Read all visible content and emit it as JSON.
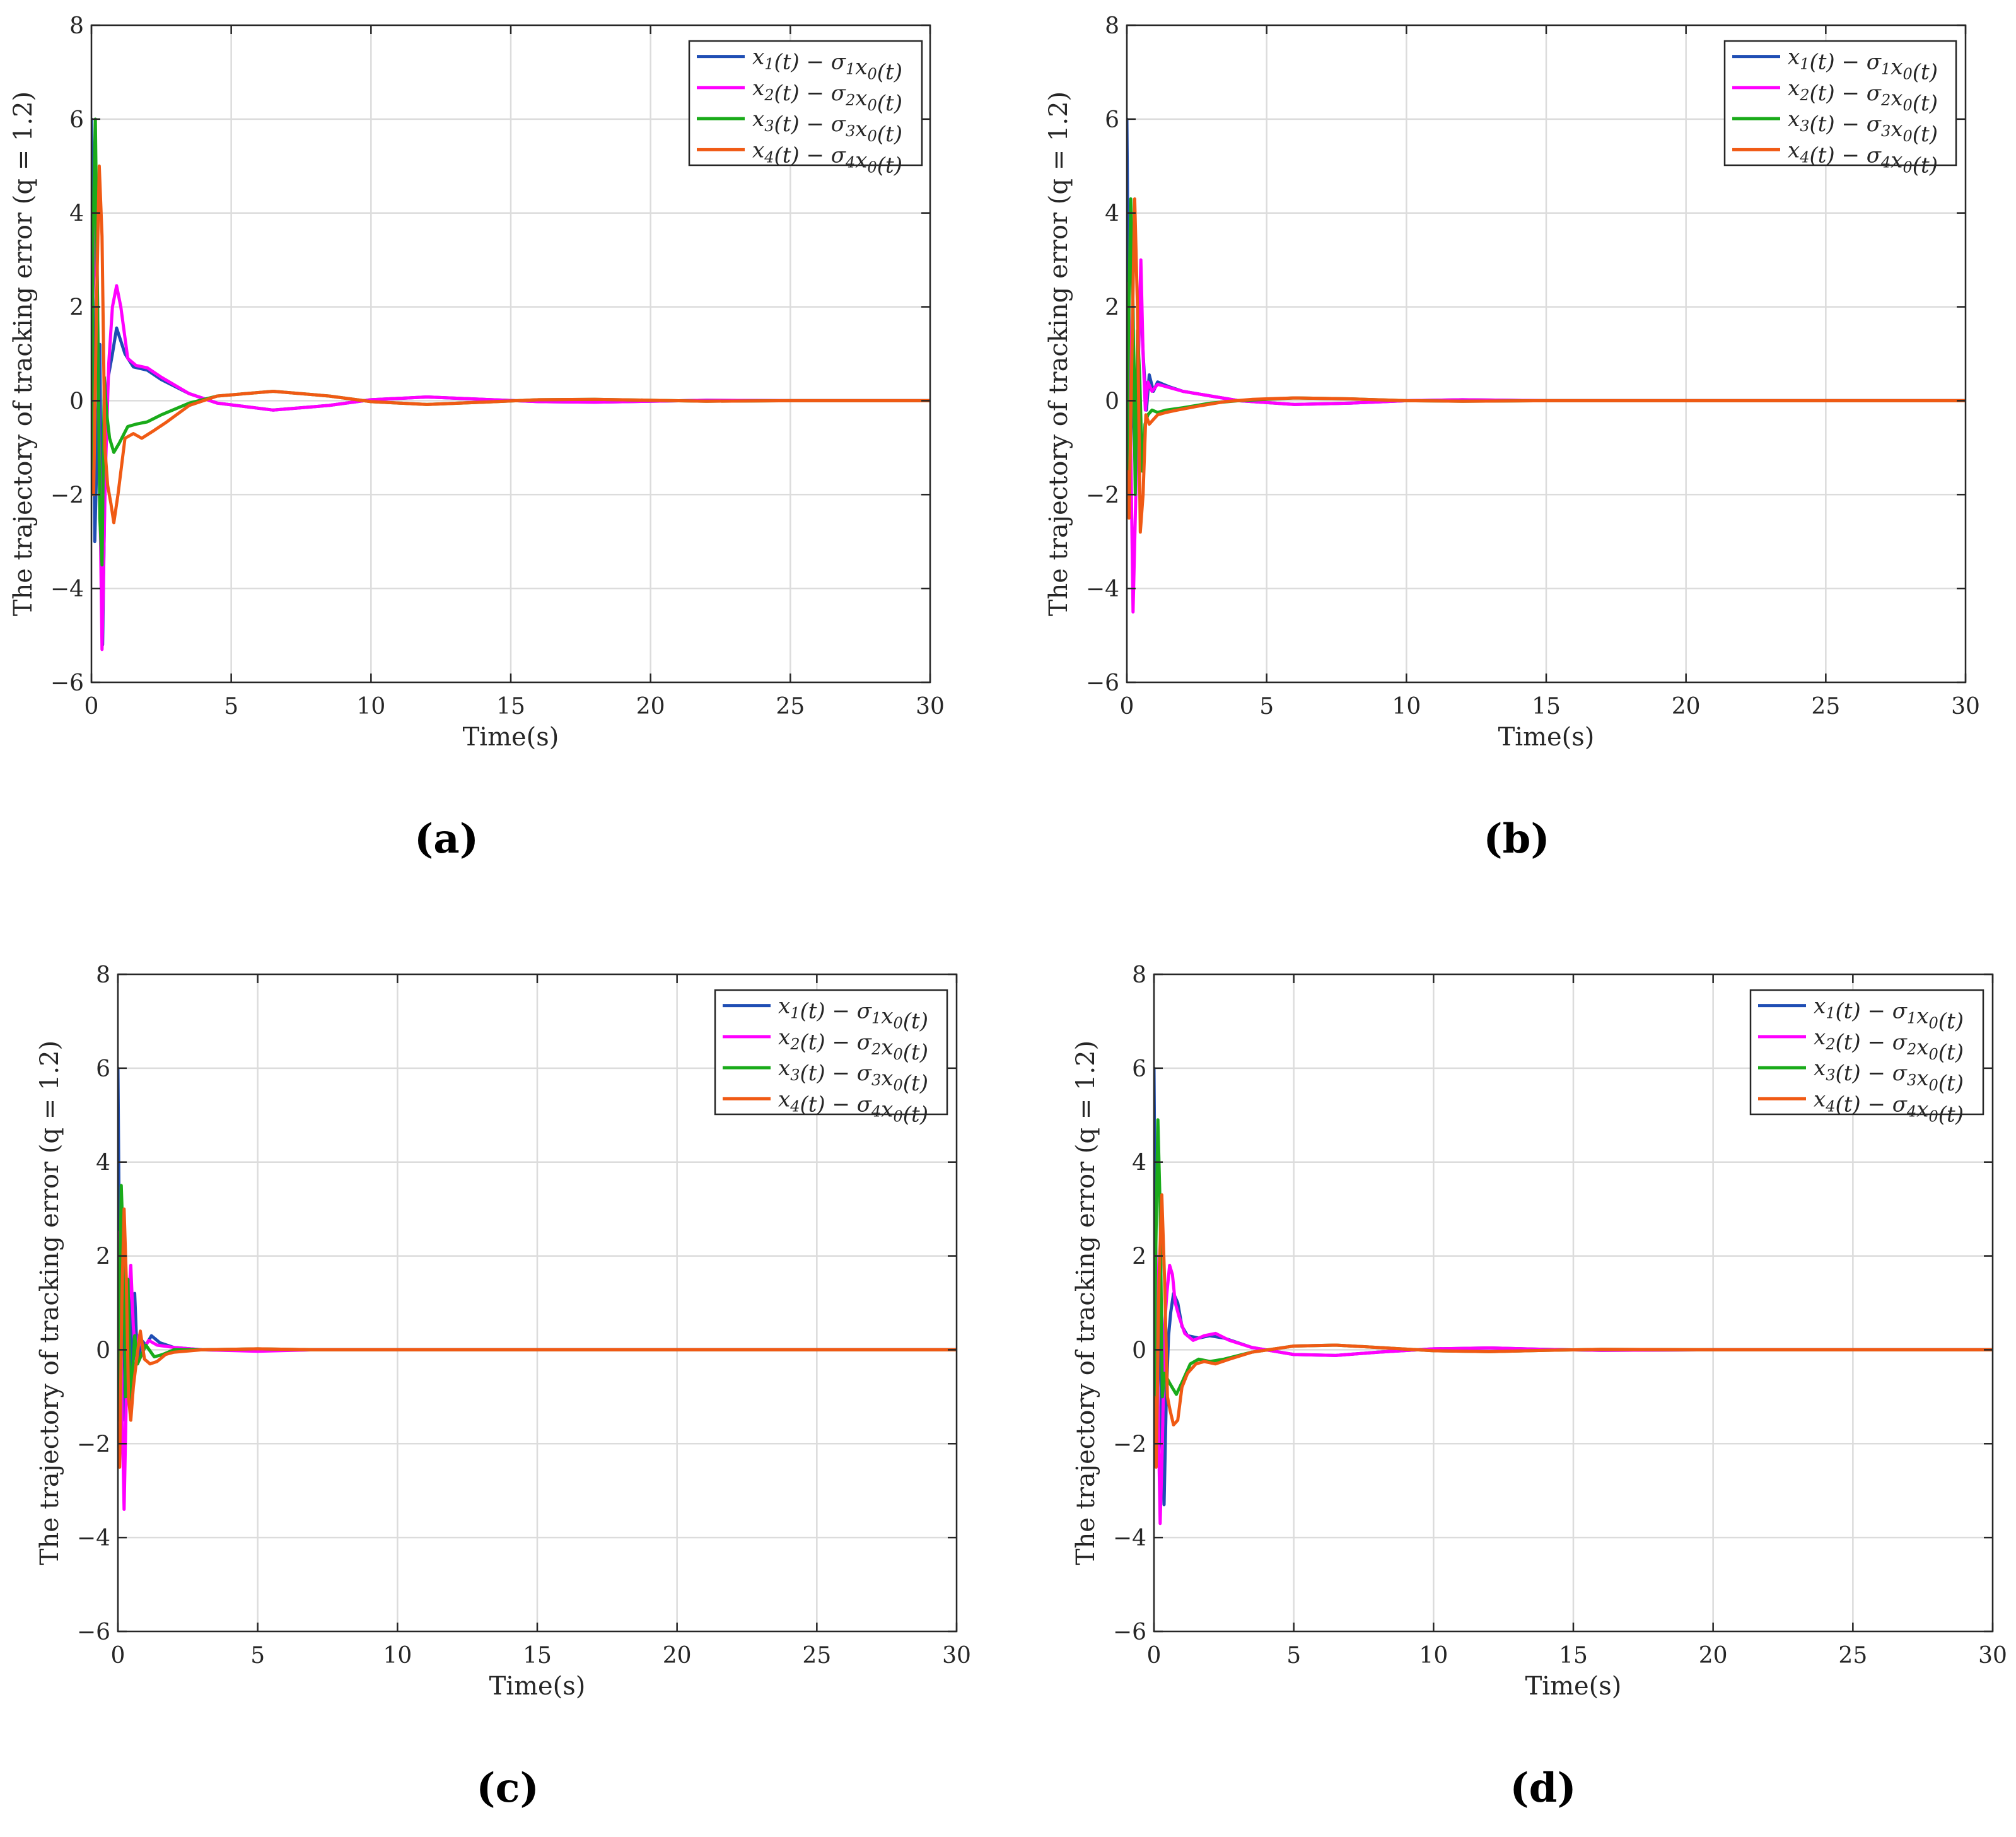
{
  "figure": {
    "panels_note": "Four subplots showing tracking error trajectories"
  },
  "chart_data": [
    {
      "type": "line",
      "caption": "(a)",
      "xlabel": "Time(s)",
      "ylabel": "The trajectory of tracking error (q = 1.2)",
      "xlim": [
        0,
        30
      ],
      "ylim": [
        -6,
        8
      ],
      "xticks": [
        "0",
        "5",
        "10",
        "15",
        "20",
        "25",
        "30"
      ],
      "yticks": [
        "−6",
        "−4",
        "−2",
        "0",
        "2",
        "4",
        "6",
        "8"
      ],
      "grid": true,
      "legend_position": "top-right",
      "series": [
        {
          "name": "x1(t) − σ1x0(t)",
          "color": "#1f4eb4",
          "x": [
            0,
            0.05,
            0.12,
            0.2,
            0.3,
            0.4,
            0.5,
            0.6,
            0.75,
            0.9,
            1.2,
            1.5,
            2.0,
            2.5,
            3.5,
            4.5,
            6.5,
            8.5,
            10,
            12,
            14,
            16,
            18,
            20,
            22,
            25,
            30
          ],
          "y": [
            6.0,
            3.0,
            -3.0,
            -1.0,
            1.2,
            -5.2,
            -1.0,
            0.5,
            1.0,
            1.55,
            1.0,
            0.72,
            0.65,
            0.45,
            0.15,
            -0.05,
            -0.2,
            -0.1,
            0.02,
            0.08,
            0.03,
            -0.02,
            -0.03,
            -0.01,
            0.01,
            0.0,
            0.0
          ]
        },
        {
          "name": "x2(t) − σ2x0(t)",
          "color": "#ff00ff",
          "x": [
            0,
            0.08,
            0.18,
            0.28,
            0.38,
            0.5,
            0.62,
            0.75,
            0.9,
            1.05,
            1.3,
            1.6,
            2.0,
            2.5,
            3.5,
            4.5,
            6.5,
            8.5,
            10,
            12,
            14,
            16,
            18,
            20,
            22,
            25,
            30
          ],
          "y": [
            1.5,
            2.5,
            4.0,
            -1.0,
            -5.3,
            -1.5,
            0.8,
            2.0,
            2.45,
            2.0,
            0.9,
            0.75,
            0.7,
            0.5,
            0.15,
            -0.05,
            -0.2,
            -0.1,
            0.02,
            0.08,
            0.03,
            -0.02,
            -0.03,
            -0.01,
            0.01,
            0.0,
            0.0
          ]
        },
        {
          "name": "x3(t) − σ3x0(t)",
          "color": "#1aab1a",
          "x": [
            0,
            0.06,
            0.14,
            0.22,
            0.3,
            0.38,
            0.46,
            0.55,
            0.65,
            0.8,
            1.0,
            1.3,
            1.6,
            2.0,
            2.5,
            3.5,
            4.5,
            6.5,
            8.5,
            10,
            12,
            14,
            16,
            18,
            20,
            22,
            25,
            30
          ],
          "y": [
            -1.5,
            3.5,
            6.0,
            2.0,
            -2.5,
            -3.5,
            0.5,
            -0.3,
            -0.8,
            -1.1,
            -0.9,
            -0.55,
            -0.5,
            -0.45,
            -0.3,
            -0.05,
            0.1,
            0.2,
            0.1,
            -0.02,
            -0.08,
            -0.03,
            0.02,
            0.03,
            0.01,
            -0.01,
            0.0,
            0.0
          ]
        },
        {
          "name": "x4(t) − σ4x0(t)",
          "color": "#f05a14",
          "x": [
            0,
            0.08,
            0.18,
            0.28,
            0.38,
            0.48,
            0.58,
            0.7,
            0.8,
            0.95,
            1.2,
            1.5,
            1.8,
            2.2,
            2.7,
            3.5,
            4.5,
            6.5,
            8.5,
            10,
            12,
            14,
            16,
            18,
            20,
            22,
            25,
            30
          ],
          "y": [
            -1.5,
            -2.0,
            2.0,
            5.0,
            3.5,
            -1.0,
            -1.8,
            -2.2,
            -2.6,
            -2.0,
            -0.8,
            -0.7,
            -0.8,
            -0.65,
            -0.45,
            -0.1,
            0.1,
            0.2,
            0.1,
            -0.02,
            -0.08,
            -0.03,
            0.02,
            0.03,
            0.01,
            -0.01,
            0.0,
            0.0
          ]
        }
      ]
    },
    {
      "type": "line",
      "caption": "(b)",
      "xlabel": "Time(s)",
      "ylabel": "The trajectory of tracking error (q = 1.2)",
      "xlim": [
        0,
        30
      ],
      "ylim": [
        -6,
        8
      ],
      "xticks": [
        "0",
        "5",
        "10",
        "15",
        "20",
        "25",
        "30"
      ],
      "yticks": [
        "−6",
        "−4",
        "−2",
        "0",
        "2",
        "4",
        "6",
        "8"
      ],
      "grid": true,
      "legend_position": "top-right",
      "series": [
        {
          "name": "x1(t) − σ1x0(t)",
          "color": "#1f4eb4",
          "x": [
            0,
            0.05,
            0.12,
            0.2,
            0.3,
            0.4,
            0.5,
            0.6,
            0.7,
            0.8,
            0.95,
            1.1,
            1.3,
            1.5,
            2.0,
            3.0,
            4.0,
            6.0,
            8.0,
            10,
            12,
            15,
            20,
            30
          ],
          "y": [
            6.0,
            2.5,
            -1.5,
            1.0,
            -1.5,
            1.5,
            2.0,
            0.8,
            -0.2,
            0.55,
            0.2,
            0.4,
            0.35,
            0.3,
            0.2,
            0.1,
            0.0,
            -0.08,
            -0.05,
            0.0,
            0.02,
            0.0,
            0.0,
            0.0
          ]
        },
        {
          "name": "x2(t) − σ2x0(t)",
          "color": "#ff00ff",
          "x": [
            0,
            0.06,
            0.14,
            0.22,
            0.32,
            0.42,
            0.5,
            0.58,
            0.66,
            0.75,
            0.9,
            1.1,
            1.4,
            2.0,
            3.0,
            4.0,
            6.0,
            8.0,
            10,
            12,
            15,
            20,
            30
          ],
          "y": [
            1.5,
            2.5,
            -1.0,
            -4.5,
            -2.0,
            1.0,
            3.0,
            1.0,
            -0.2,
            0.4,
            0.2,
            0.35,
            0.3,
            0.2,
            0.1,
            0.0,
            -0.08,
            -0.05,
            0.0,
            0.02,
            0.0,
            0.0,
            0.0
          ]
        },
        {
          "name": "x3(t) − σ3x0(t)",
          "color": "#1aab1a",
          "x": [
            0,
            0.06,
            0.14,
            0.22,
            0.3,
            0.38,
            0.46,
            0.55,
            0.65,
            0.75,
            0.9,
            1.1,
            1.4,
            2.0,
            3.0,
            4.0,
            6.0,
            8.0,
            10,
            12,
            15,
            20,
            30
          ],
          "y": [
            -1.5,
            1.5,
            4.3,
            2.0,
            -2.0,
            1.5,
            0.5,
            -1.5,
            -0.5,
            -0.3,
            -0.2,
            -0.25,
            -0.2,
            -0.15,
            -0.05,
            0.0,
            0.06,
            0.04,
            0.0,
            -0.01,
            0.0,
            0.0,
            0.0
          ]
        },
        {
          "name": "x4(t) − σ4x0(t)",
          "color": "#f05a14",
          "x": [
            0,
            0.08,
            0.18,
            0.28,
            0.38,
            0.48,
            0.58,
            0.68,
            0.8,
            0.95,
            1.1,
            1.4,
            1.8,
            2.5,
            3.5,
            4.5,
            6.0,
            8.0,
            10,
            12,
            15,
            20,
            30
          ],
          "y": [
            -1.5,
            -2.5,
            1.0,
            4.3,
            2.0,
            -2.8,
            -2.0,
            -0.3,
            -0.5,
            -0.4,
            -0.3,
            -0.25,
            -0.2,
            -0.12,
            -0.02,
            0.03,
            0.06,
            0.04,
            0.0,
            -0.01,
            0.0,
            0.0,
            0.0
          ]
        }
      ]
    },
    {
      "type": "line",
      "caption": "(c)",
      "xlabel": "Time(s)",
      "ylabel": "The trajectory of tracking error (q = 1.2)",
      "xlim": [
        0,
        30
      ],
      "ylim": [
        -6,
        8
      ],
      "xticks": [
        "0",
        "5",
        "10",
        "15",
        "20",
        "25",
        "30"
      ],
      "yticks": [
        "−6",
        "−4",
        "−2",
        "0",
        "2",
        "4",
        "6",
        "8"
      ],
      "grid": true,
      "legend_position": "top-right",
      "series": [
        {
          "name": "x1(t) − σ1x0(t)",
          "color": "#1f4eb4",
          "x": [
            0,
            0.04,
            0.1,
            0.18,
            0.26,
            0.34,
            0.42,
            0.5,
            0.6,
            0.7,
            0.85,
            1.0,
            1.2,
            1.5,
            2.0,
            3.0,
            5.0,
            7.0,
            10,
            15,
            30
          ],
          "y": [
            6.0,
            3.0,
            -1.0,
            2.5,
            -1.5,
            0.5,
            1.5,
            -0.5,
            1.2,
            -0.3,
            0.2,
            0.1,
            0.3,
            0.15,
            0.05,
            0.0,
            -0.02,
            0.0,
            0.0,
            0.0,
            0.0
          ]
        },
        {
          "name": "x2(t) − σ2x0(t)",
          "color": "#ff00ff",
          "x": [
            0,
            0.06,
            0.14,
            0.22,
            0.3,
            0.38,
            0.46,
            0.55,
            0.65,
            0.75,
            0.9,
            1.1,
            1.4,
            2.0,
            3.0,
            5.0,
            7.0,
            10,
            15,
            30
          ],
          "y": [
            1.5,
            2.5,
            -1.0,
            -3.4,
            -1.0,
            1.0,
            1.8,
            0.5,
            -0.2,
            0.3,
            0.0,
            0.2,
            0.1,
            0.05,
            0.0,
            -0.03,
            0.0,
            0.0,
            0.0,
            0.0
          ]
        },
        {
          "name": "x3(t) − σ3x0(t)",
          "color": "#1aab1a",
          "x": [
            0,
            0.06,
            0.12,
            0.2,
            0.28,
            0.36,
            0.44,
            0.52,
            0.6,
            0.7,
            0.85,
            1.0,
            1.3,
            1.6,
            2.0,
            3.0,
            5.0,
            7.0,
            10,
            15,
            30
          ],
          "y": [
            -1.5,
            1.0,
            3.5,
            2.0,
            -1.0,
            1.5,
            -1.2,
            -0.5,
            0.3,
            -0.3,
            -0.1,
            0.1,
            -0.15,
            -0.1,
            0.0,
            0.0,
            0.02,
            0.0,
            0.0,
            0.0,
            0.0
          ]
        },
        {
          "name": "x4(t) − σ4x0(t)",
          "color": "#f05a14",
          "x": [
            0,
            0.06,
            0.14,
            0.22,
            0.3,
            0.38,
            0.46,
            0.55,
            0.65,
            0.8,
            0.95,
            1.15,
            1.4,
            1.7,
            2.0,
            3.0,
            5.0,
            7.0,
            10,
            15,
            30
          ],
          "y": [
            -2.0,
            -2.5,
            1.0,
            3.0,
            1.5,
            -1.0,
            -1.5,
            -0.8,
            -0.3,
            0.4,
            -0.2,
            -0.3,
            -0.25,
            -0.1,
            -0.05,
            0.0,
            0.02,
            0.0,
            0.0,
            0.0,
            0.0
          ]
        }
      ]
    },
    {
      "type": "line",
      "caption": "(d)",
      "xlabel": "Time(s)",
      "ylabel": "The trajectory of tracking error (q = 1.2)",
      "xlim": [
        0,
        30
      ],
      "ylim": [
        -6,
        8
      ],
      "xticks": [
        "0",
        "5",
        "10",
        "15",
        "20",
        "25",
        "30"
      ],
      "yticks": [
        "−6",
        "−4",
        "−2",
        "0",
        "2",
        "4",
        "6",
        "8"
      ],
      "grid": true,
      "legend_position": "top-right",
      "series": [
        {
          "name": "x1(t) − σ1x0(t)",
          "color": "#1f4eb4",
          "x": [
            0,
            0.05,
            0.12,
            0.2,
            0.28,
            0.36,
            0.44,
            0.52,
            0.6,
            0.7,
            0.85,
            1.0,
            1.2,
            1.6,
            2.0,
            2.5,
            3.5,
            5.0,
            6.5,
            8.0,
            10,
            12,
            14,
            16,
            20,
            30
          ],
          "y": [
            6.0,
            2.0,
            -1.5,
            2.0,
            -2.0,
            -3.3,
            -1.0,
            0.3,
            0.8,
            1.2,
            1.0,
            0.5,
            0.3,
            0.25,
            0.3,
            0.25,
            0.05,
            -0.1,
            -0.12,
            -0.05,
            0.02,
            0.04,
            0.01,
            -0.01,
            0.0,
            0.0
          ]
        },
        {
          "name": "x2(t) − σ2x0(t)",
          "color": "#ff00ff",
          "x": [
            0,
            0.06,
            0.14,
            0.22,
            0.3,
            0.38,
            0.46,
            0.56,
            0.66,
            0.76,
            0.9,
            1.1,
            1.4,
            1.8,
            2.2,
            2.7,
            3.5,
            5.0,
            6.5,
            8.0,
            10,
            12,
            14,
            16,
            20,
            30
          ],
          "y": [
            1.5,
            2.5,
            -1.0,
            -3.7,
            -2.0,
            0.5,
            1.2,
            1.8,
            1.6,
            1.0,
            0.7,
            0.35,
            0.2,
            0.3,
            0.35,
            0.2,
            0.05,
            -0.1,
            -0.12,
            -0.05,
            0.02,
            0.04,
            0.01,
            -0.01,
            0.0,
            0.0
          ]
        },
        {
          "name": "x3(t) − σ3x0(t)",
          "color": "#1aab1a",
          "x": [
            0,
            0.06,
            0.14,
            0.22,
            0.3,
            0.38,
            0.46,
            0.55,
            0.65,
            0.8,
            1.0,
            1.3,
            1.6,
            2.0,
            2.5,
            3.5,
            5.0,
            6.5,
            8.0,
            10,
            12,
            14,
            16,
            20,
            30
          ],
          "y": [
            -1.5,
            2.0,
            4.9,
            3.0,
            -1.0,
            -0.5,
            -0.6,
            -0.7,
            -0.8,
            -0.95,
            -0.7,
            -0.3,
            -0.2,
            -0.25,
            -0.2,
            -0.05,
            0.08,
            0.1,
            0.05,
            -0.02,
            -0.04,
            -0.01,
            0.01,
            0.0,
            0.0
          ]
        },
        {
          "name": "x4(t) − σ4x0(t)",
          "color": "#f05a14",
          "x": [
            0,
            0.08,
            0.18,
            0.28,
            0.38,
            0.48,
            0.58,
            0.7,
            0.85,
            1.0,
            1.2,
            1.5,
            1.8,
            2.2,
            2.7,
            3.5,
            5.0,
            6.5,
            8.0,
            10,
            12,
            14,
            16,
            20,
            30
          ],
          "y": [
            -1.0,
            -2.5,
            1.5,
            3.3,
            1.5,
            -1.0,
            -1.3,
            -1.6,
            -1.5,
            -0.8,
            -0.5,
            -0.3,
            -0.25,
            -0.3,
            -0.2,
            -0.05,
            0.08,
            0.1,
            0.05,
            -0.02,
            -0.04,
            -0.01,
            0.01,
            0.0,
            0.0
          ]
        }
      ]
    }
  ]
}
